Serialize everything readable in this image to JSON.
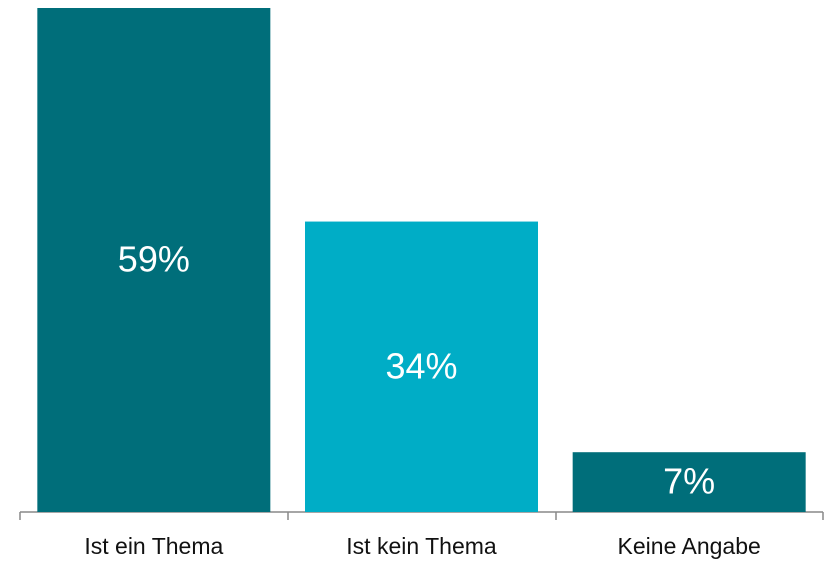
{
  "chart_data": {
    "type": "bar",
    "categories": [
      "Ist ein Thema",
      "Ist kein Thema",
      "Keine Angabe"
    ],
    "values": [
      59,
      34,
      7
    ],
    "value_labels": [
      "59%",
      "34%",
      "7%"
    ],
    "colors": [
      "#006e7a",
      "#00adc6",
      "#006e7a"
    ]
  }
}
